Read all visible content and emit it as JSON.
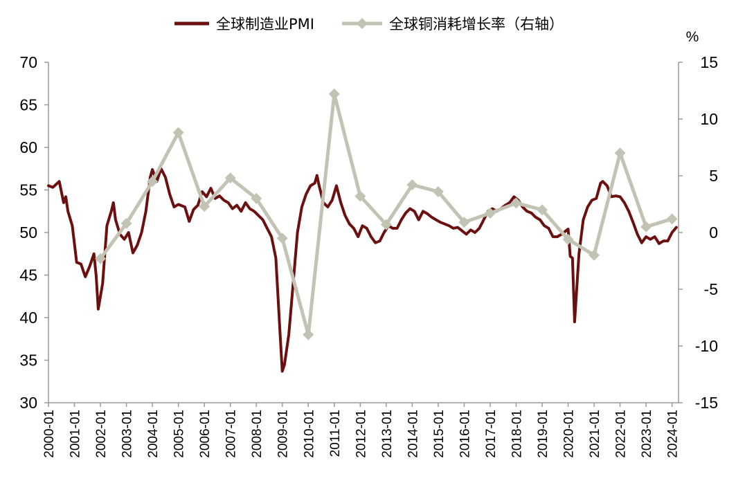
{
  "chart_data": {
    "type": "line",
    "title": "",
    "legend": {
      "position": "top-center",
      "entries": [
        "全球制造业PMI",
        "全球铜消耗增长率（右轴）"
      ]
    },
    "colors": {
      "pmi": "#6b0f0f",
      "copper": "#c3c3b4"
    },
    "y_left": {
      "ylim": [
        30,
        70
      ],
      "ticks": [
        "30",
        "35",
        "40",
        "45",
        "50",
        "55",
        "60",
        "65",
        "70"
      ]
    },
    "y_right": {
      "unit": "%",
      "ylim": [
        -15,
        15
      ],
      "ticks": [
        "-15",
        "-10",
        "-5",
        "0",
        "5",
        "10",
        "15"
      ]
    },
    "x_ticks": [
      "2000-01",
      "2001-01",
      "2002-01",
      "2003-01",
      "2004-01",
      "2005-01",
      "2006-01",
      "2007-01",
      "2008-01",
      "2009-01",
      "2010-01",
      "2011-01",
      "2012-01",
      "2013-01",
      "2014-01",
      "2015-01",
      "2016-01",
      "2017-01",
      "2018-01",
      "2019-01",
      "2020-01",
      "2021-01",
      "2022-01",
      "2023-01",
      "2024-01"
    ],
    "series": [
      {
        "name": "全球制造业PMI",
        "axis": "left",
        "marker": "none",
        "points": [
          [
            "2000-01",
            55.5
          ],
          [
            "2000-03",
            55.3
          ],
          [
            "2000-06",
            56
          ],
          [
            "2000-08",
            53.5
          ],
          [
            "2000-09",
            54.2
          ],
          [
            "2000-10",
            52.5
          ],
          [
            "2000-12",
            50.8
          ],
          [
            "2001-02",
            46.5
          ],
          [
            "2001-04",
            46.3
          ],
          [
            "2001-06",
            44.8
          ],
          [
            "2001-08",
            46
          ],
          [
            "2001-10",
            47.5
          ],
          [
            "2001-11",
            45
          ],
          [
            "2001-12",
            41
          ],
          [
            "2002-02",
            44
          ],
          [
            "2002-04",
            50.8
          ],
          [
            "2002-06",
            52.5
          ],
          [
            "2002-07",
            53.5
          ],
          [
            "2002-08",
            51.5
          ],
          [
            "2002-10",
            49.8
          ],
          [
            "2002-12",
            49.2
          ],
          [
            "2003-02",
            50
          ],
          [
            "2003-04",
            47.6
          ],
          [
            "2003-06",
            48.5
          ],
          [
            "2003-08",
            50
          ],
          [
            "2003-10",
            52.5
          ],
          [
            "2003-12",
            56.5
          ],
          [
            "2004-01",
            57.4
          ],
          [
            "2004-03",
            56
          ],
          [
            "2004-05",
            57.5
          ],
          [
            "2004-07",
            56.5
          ],
          [
            "2004-09",
            54.5
          ],
          [
            "2004-11",
            53
          ],
          [
            "2005-01",
            53.3
          ],
          [
            "2005-04",
            53
          ],
          [
            "2005-06",
            51.3
          ],
          [
            "2005-08",
            52.7
          ],
          [
            "2005-10",
            53.2
          ],
          [
            "2005-12",
            54.8
          ],
          [
            "2006-02",
            54.2
          ],
          [
            "2006-04",
            55.2
          ],
          [
            "2006-06",
            54
          ],
          [
            "2006-08",
            54.3
          ],
          [
            "2006-10",
            53.8
          ],
          [
            "2006-12",
            53.5
          ],
          [
            "2007-02",
            52.8
          ],
          [
            "2007-04",
            53.2
          ],
          [
            "2007-06",
            52.5
          ],
          [
            "2007-08",
            53.5
          ],
          [
            "2007-10",
            52.8
          ],
          [
            "2007-12",
            52.5
          ],
          [
            "2008-02",
            52
          ],
          [
            "2008-04",
            51.5
          ],
          [
            "2008-06",
            50.5
          ],
          [
            "2008-08",
            49.5
          ],
          [
            "2008-10",
            47
          ],
          [
            "2008-12",
            38
          ],
          [
            "2009-01",
            33.7
          ],
          [
            "2009-02",
            34.5
          ],
          [
            "2009-04",
            38
          ],
          [
            "2009-06",
            44
          ],
          [
            "2009-08",
            50
          ],
          [
            "2009-10",
            53
          ],
          [
            "2009-12",
            54.5
          ],
          [
            "2010-02",
            55.5
          ],
          [
            "2010-04",
            55.8
          ],
          [
            "2010-05",
            56.7
          ],
          [
            "2010-06",
            55.5
          ],
          [
            "2010-08",
            53.5
          ],
          [
            "2010-10",
            53
          ],
          [
            "2010-12",
            53.8
          ],
          [
            "2011-02",
            55.5
          ],
          [
            "2011-04",
            53.5
          ],
          [
            "2011-06",
            52
          ],
          [
            "2011-08",
            51
          ],
          [
            "2011-10",
            50.5
          ],
          [
            "2011-12",
            49.5
          ],
          [
            "2012-02",
            50.8
          ],
          [
            "2012-04",
            50.5
          ],
          [
            "2012-06",
            49.5
          ],
          [
            "2012-08",
            48.8
          ],
          [
            "2012-10",
            49
          ],
          [
            "2012-12",
            50
          ],
          [
            "2013-02",
            50.8
          ],
          [
            "2013-04",
            50.5
          ],
          [
            "2013-06",
            50.5
          ],
          [
            "2013-08",
            51.5
          ],
          [
            "2013-10",
            52.3
          ],
          [
            "2013-12",
            52.8
          ],
          [
            "2014-02",
            52.5
          ],
          [
            "2014-04",
            51.5
          ],
          [
            "2014-06",
            52.5
          ],
          [
            "2014-08",
            52.2
          ],
          [
            "2014-10",
            51.8
          ],
          [
            "2014-12",
            51.5
          ],
          [
            "2015-02",
            51.2
          ],
          [
            "2015-04",
            51
          ],
          [
            "2015-06",
            50.8
          ],
          [
            "2015-08",
            50.5
          ],
          [
            "2015-10",
            50.6
          ],
          [
            "2015-12",
            50.2
          ],
          [
            "2016-02",
            49.8
          ],
          [
            "2016-04",
            50.3
          ],
          [
            "2016-06",
            50
          ],
          [
            "2016-08",
            50.5
          ],
          [
            "2016-10",
            51.5
          ],
          [
            "2016-12",
            52.5
          ],
          [
            "2017-02",
            52.8
          ],
          [
            "2017-04",
            52.5
          ],
          [
            "2017-06",
            52.8
          ],
          [
            "2017-08",
            53.2
          ],
          [
            "2017-10",
            53.5
          ],
          [
            "2017-12",
            54.2
          ],
          [
            "2018-02",
            53.8
          ],
          [
            "2018-04",
            53
          ],
          [
            "2018-06",
            52.5
          ],
          [
            "2018-08",
            52.3
          ],
          [
            "2018-10",
            51.8
          ],
          [
            "2018-12",
            51.5
          ],
          [
            "2019-02",
            50.8
          ],
          [
            "2019-04",
            50.5
          ],
          [
            "2019-06",
            49.5
          ],
          [
            "2019-08",
            49.5
          ],
          [
            "2019-10",
            49.8
          ],
          [
            "2019-12",
            50.2
          ],
          [
            "2020-01",
            50.4
          ],
          [
            "2020-02",
            47.2
          ],
          [
            "2020-03",
            47
          ],
          [
            "2020-04",
            39.5
          ],
          [
            "2020-06",
            47.5
          ],
          [
            "2020-08",
            51.5
          ],
          [
            "2020-10",
            53
          ],
          [
            "2020-12",
            53.8
          ],
          [
            "2021-02",
            54
          ],
          [
            "2021-04",
            55.8
          ],
          [
            "2021-05",
            56
          ],
          [
            "2021-07",
            55.5
          ],
          [
            "2021-09",
            54.2
          ],
          [
            "2021-11",
            54.3
          ],
          [
            "2022-01",
            54.2
          ],
          [
            "2022-03",
            53.5
          ],
          [
            "2022-05",
            52.5
          ],
          [
            "2022-07",
            51.2
          ],
          [
            "2022-09",
            49.8
          ],
          [
            "2022-11",
            48.8
          ],
          [
            "2023-01",
            49.5
          ],
          [
            "2023-03",
            49.2
          ],
          [
            "2023-05",
            49.5
          ],
          [
            "2023-07",
            48.7
          ],
          [
            "2023-09",
            49
          ],
          [
            "2023-11",
            49
          ],
          [
            "2024-01",
            50
          ],
          [
            "2024-03",
            50.6
          ]
        ]
      },
      {
        "name": "全球铜消耗增长率（右轴）",
        "axis": "right",
        "marker": "diamond",
        "points": [
          [
            "2002-01",
            -2.3
          ],
          [
            "2003-01",
            0.8
          ],
          [
            "2004-01",
            4.5
          ],
          [
            "2005-01",
            8.8
          ],
          [
            "2006-01",
            2.3
          ],
          [
            "2007-01",
            4.8
          ],
          [
            "2008-01",
            3
          ],
          [
            "2009-01",
            -0.5
          ],
          [
            "2010-01",
            -9
          ],
          [
            "2011-01",
            12.2
          ],
          [
            "2012-01",
            3.2
          ],
          [
            "2013-01",
            0.7
          ],
          [
            "2014-01",
            4.2
          ],
          [
            "2015-01",
            3.6
          ],
          [
            "2016-01",
            0.9
          ],
          [
            "2017-01",
            1.7
          ],
          [
            "2018-01",
            2.6
          ],
          [
            "2019-01",
            2
          ],
          [
            "2020-01",
            -0.6
          ],
          [
            "2021-01",
            -2
          ],
          [
            "2022-01",
            7
          ],
          [
            "2023-01",
            0.5
          ],
          [
            "2024-01",
            1.2
          ]
        ]
      }
    ]
  }
}
